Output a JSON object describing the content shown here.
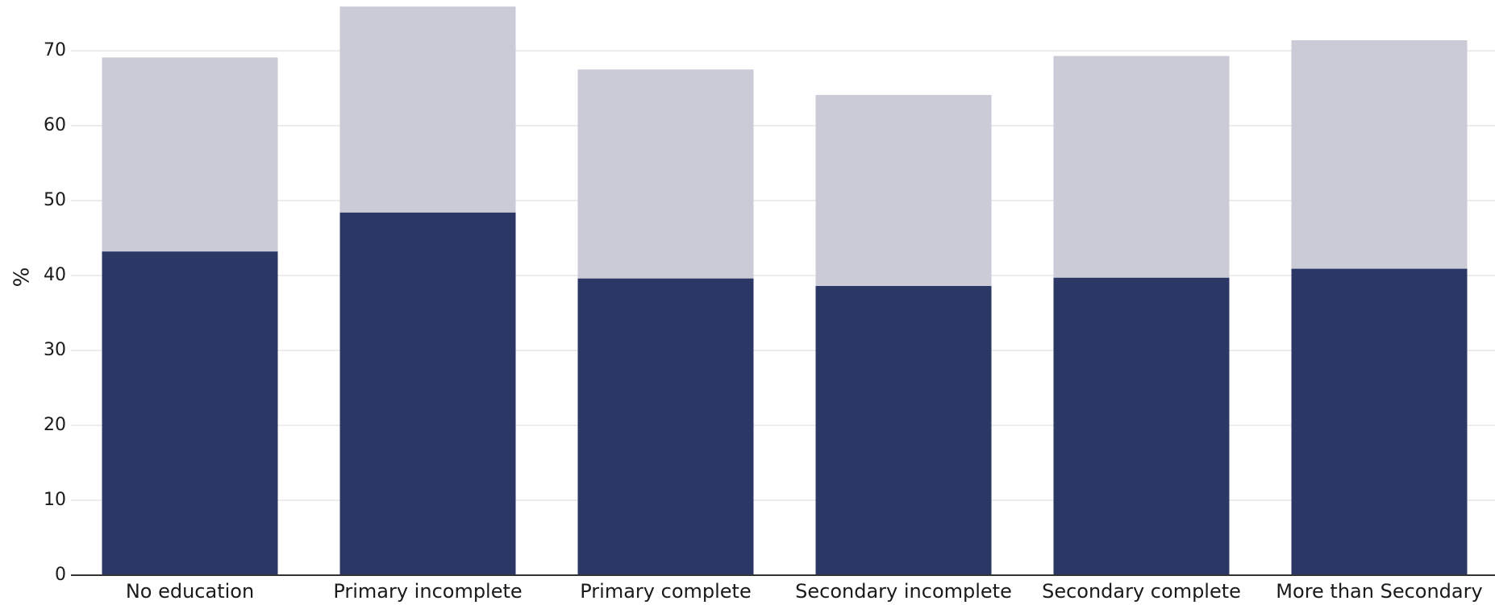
{
  "chart_data": {
    "type": "bar",
    "stacked": false,
    "overlapping": true,
    "title": "",
    "xlabel": "",
    "ylabel": "%",
    "ylim": [
      0,
      76
    ],
    "yticks": [
      0,
      10,
      20,
      30,
      40,
      50,
      60,
      70
    ],
    "grid": true,
    "categories": [
      "No education",
      "Primary incomplete",
      "Primary complete",
      "Secondary incomplete",
      "Secondary complete",
      "More than Secondary"
    ],
    "series": [
      {
        "color": "#cacbd7",
        "values": [
          69.1,
          75.9,
          67.5,
          64.1,
          69.3,
          71.4
        ]
      },
      {
        "color": "#2b3765",
        "values": [
          43.2,
          48.4,
          39.6,
          38.6,
          39.7,
          40.9
        ]
      }
    ]
  }
}
